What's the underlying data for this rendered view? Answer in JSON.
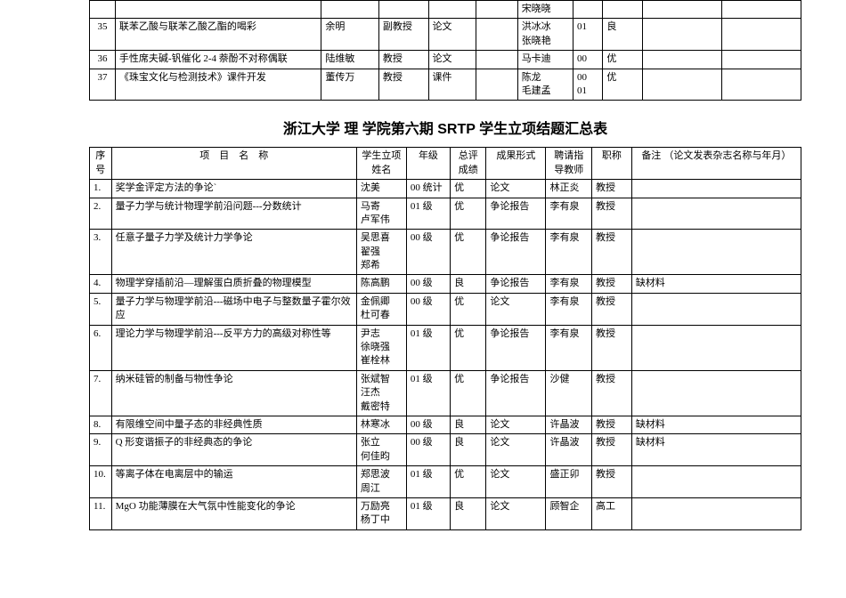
{
  "table1": {
    "rows": [
      {
        "seq": "",
        "proj": "",
        "s1": "",
        "s2": "",
        "s3": "",
        "s4": "",
        "s5": "宋晓晓",
        "s6": "",
        "s7": "",
        "s8": "",
        "s9": ""
      },
      {
        "seq": "35",
        "proj": "联苯乙酸与联苯乙酸乙酯的喝彩",
        "s1": "余明",
        "s2": "副教授",
        "s3": "论文",
        "s4": "",
        "s5": "洪冰冰\n张晓艳",
        "s6": "01",
        "s7": "良",
        "s8": "",
        "s9": ""
      },
      {
        "seq": "36",
        "proj": "手性席夫碱-钒催化 2-4 萘酚不对称偶联",
        "s1": "陆维敏",
        "s2": "教授",
        "s3": "论文",
        "s4": "",
        "s5": "马卡迪",
        "s6": "00",
        "s7": "优",
        "s8": "",
        "s9": ""
      },
      {
        "seq": "37",
        "proj": "《珠宝文化与检测技术》课件开发",
        "s1": "董传万",
        "s2": "教授",
        "s3": "课件",
        "s4": "",
        "s5": "陈龙\n毛建孟",
        "s6": "00\n01",
        "s7": "优",
        "s8": "",
        "s9": ""
      }
    ]
  },
  "title": "浙江大学 理 学院第六期 SRTP 学生立项结题汇总表",
  "table2": {
    "headers": {
      "seq": "序号",
      "proj": "项　目　名　称",
      "name": "学生立项姓名",
      "grade": "年级",
      "score": "总评成绩",
      "form": "成果形式",
      "teacher": "聘请指导教师",
      "title": "职称",
      "remark": "备注\n（论文发表杂志名称与年月）"
    },
    "rows": [
      {
        "seq": "1.",
        "proj": "奖学金评定方法的争论`",
        "name": "沈美",
        "grade": "00 统计",
        "score": "优",
        "form": "论文",
        "teacher": "林正炎",
        "title": "教授",
        "remark": ""
      },
      {
        "seq": "2.",
        "proj": "量子力学与统计物理学前沿问题---分数统计",
        "name": "马寄\n卢军伟",
        "grade": "01 级",
        "score": "优",
        "form": "争论报告",
        "teacher": "李有泉",
        "title": "教授",
        "remark": ""
      },
      {
        "seq": "3.",
        "proj": "任意子量子力学及统计力学争论",
        "name": "吴思喜\n翟强\n郑希",
        "grade": "00 级",
        "score": "优",
        "form": "争论报告",
        "teacher": "李有泉",
        "title": "教授",
        "remark": ""
      },
      {
        "seq": "4.",
        "proj": "物理学穿插前沿―理解蛋白质折叠的物理模型",
        "name": "陈高鹏",
        "grade": "00 级",
        "score": "良",
        "form": "争论报告",
        "teacher": "李有泉",
        "title": "教授",
        "remark": "缺材料"
      },
      {
        "seq": "5.",
        "proj": "量子力学与物理学前沿---磁场中电子与整数量子霍尔效应",
        "name": "金佩卿\n杜可春",
        "grade": "00 级",
        "score": "优",
        "form": "论文",
        "teacher": "李有泉",
        "title": "教授",
        "remark": ""
      },
      {
        "seq": "6.",
        "proj": "理论力学与物理学前沿---反平方力的高级对称性等",
        "name": "尹志\n徐晓强\n崔栓林",
        "grade": "01 级",
        "score": "优",
        "form": "争论报告",
        "teacher": "李有泉",
        "title": "教授",
        "remark": ""
      },
      {
        "seq": "7.",
        "proj": "纳米硅管的制备与物性争论",
        "name": "张斌智\n汪杰\n戴密特",
        "grade": "01 级",
        "score": "优",
        "form": "争论报告",
        "teacher": "沙健",
        "title": "教授",
        "remark": ""
      },
      {
        "seq": "8.",
        "proj": "有限维空间中量子态的非经典性质",
        "name": "林寒冰",
        "grade": "00 级",
        "score": "良",
        "form": "论文",
        "teacher": "许晶波",
        "title": "教授",
        "remark": "缺材料"
      },
      {
        "seq": "9.",
        "proj": "Q 形变谐振子的非经典态的争论",
        "name": "张立\n何佳昀",
        "grade": "00 级",
        "score": "良",
        "form": "论文",
        "teacher": "许晶波",
        "title": "教授",
        "remark": "缺材料"
      },
      {
        "seq": "10.",
        "proj": "等离子体在电离层中的输运",
        "name": "郑思波\n周江",
        "grade": "01 级",
        "score": "优",
        "form": "论文",
        "teacher": "盛正卯",
        "title": "教授",
        "remark": ""
      },
      {
        "seq": "11.",
        "proj": "MgO 功能薄膜在大气氛中性能变化的争论",
        "name": "万励亮\n杨丁中",
        "grade": "01 级",
        "score": "良",
        "form": "论文",
        "teacher": "顾智企",
        "title": "高工",
        "remark": ""
      }
    ]
  }
}
